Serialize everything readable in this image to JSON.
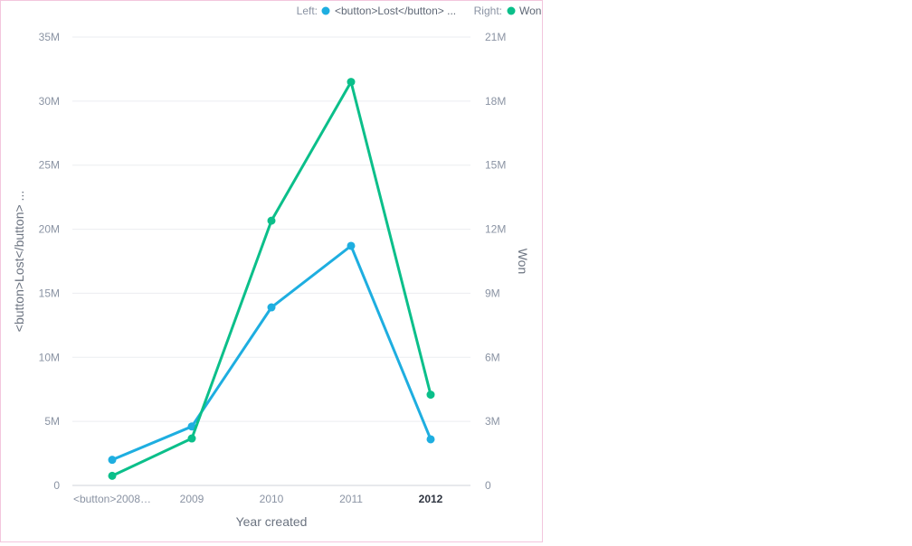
{
  "chart_data": {
    "type": "line",
    "categories": [
      "<button>2008…",
      "2009",
      "2010",
      "2011",
      "2012"
    ],
    "highlighted_category": "2012",
    "xlabel": "Year created",
    "left_axis": {
      "title": "<button>Lost</button> ...",
      "ylim": [
        0,
        35000000
      ],
      "ticks": [
        "0",
        "5M",
        "10M",
        "15M",
        "20M",
        "25M",
        "30M",
        "35M"
      ]
    },
    "right_axis": {
      "title": "Won",
      "ylim": [
        0,
        21000000
      ],
      "ticks": [
        "0",
        "3M",
        "6M",
        "9M",
        "12M",
        "15M",
        "18M",
        "21M"
      ]
    },
    "legend": {
      "left_label": "Left:",
      "left_series": "<button>Lost</button> ...",
      "right_label": "Right:",
      "right_series": "Won"
    },
    "series": [
      {
        "name": "<button>Lost</button> ...",
        "axis": "left",
        "color": "#1eaee0",
        "values": [
          2000000,
          4600000,
          13900000,
          18700000,
          3600000
        ]
      },
      {
        "name": "Won",
        "axis": "right",
        "color": "#0bbf8a",
        "values": [
          450000,
          2200000,
          12400000,
          18900000,
          4250000
        ]
      }
    ],
    "grid": true,
    "legend_position": "top-right"
  }
}
